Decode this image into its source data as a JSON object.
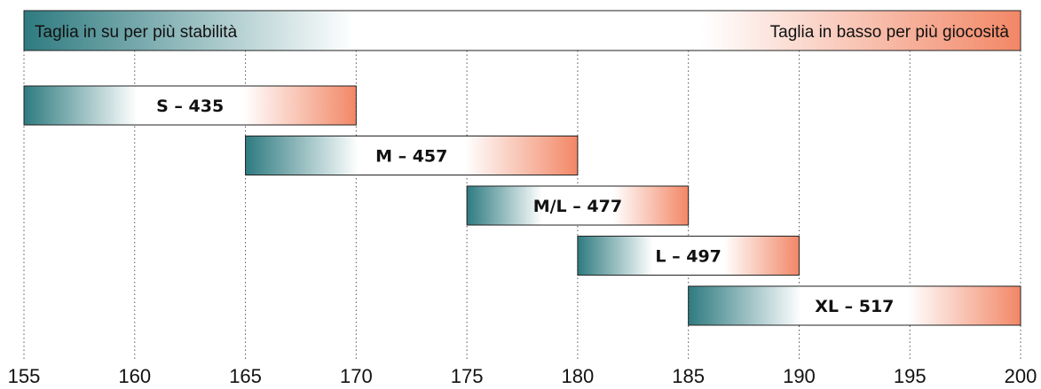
{
  "colors": {
    "teal": "#2e7b80",
    "coral": "#f28766",
    "grid": "#555555",
    "border": "#222222"
  },
  "banner": {
    "left_text": "Taglia in su per più stabilità",
    "right_text": "Taglia in basso per più giocosità"
  },
  "chart_data": {
    "type": "bar",
    "orientation": "horizontal-range",
    "categories": [
      "S – 435",
      "M – 457",
      "M/L – 477",
      "L – 497",
      "XL – 517"
    ],
    "ranges": [
      {
        "label": "S – 435",
        "start": 155,
        "end": 170
      },
      {
        "label": "M – 457",
        "start": 165,
        "end": 180
      },
      {
        "label": "M/L – 477",
        "start": 175,
        "end": 185
      },
      {
        "label": "L – 497",
        "start": 180,
        "end": 190
      },
      {
        "label": "XL – 517",
        "start": 185,
        "end": 200
      }
    ],
    "xlim": [
      155,
      200
    ],
    "xticks": [
      "155",
      "160",
      "165",
      "170",
      "175",
      "180",
      "185",
      "190",
      "195",
      "200"
    ],
    "grid": "vertical-dotted",
    "title": "",
    "xlabel": "",
    "ylabel": ""
  }
}
